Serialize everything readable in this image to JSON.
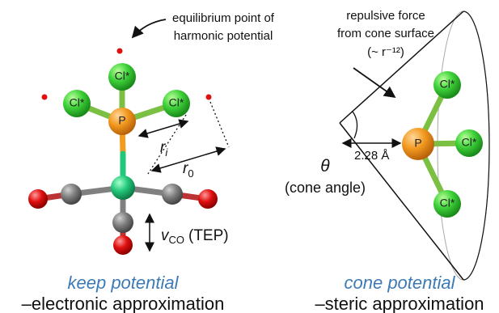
{
  "left_panel": {
    "annotation": [
      "equilibrium point of",
      "harmonic potential"
    ],
    "atoms": {
      "top": "Cl*",
      "left": "Cl*",
      "right": "Cl*",
      "center": "P"
    },
    "r_i": {
      "symbol": "r",
      "subscript": "i"
    },
    "r_0": {
      "symbol": "r",
      "subscript": "0"
    },
    "v_co": {
      "symbol": "v",
      "subscript": "CO",
      "suffix": "(TEP)"
    },
    "caption": "keep potential",
    "subcaption": "–electronic approximation"
  },
  "right_panel": {
    "annotation": [
      "repulsive force",
      "from cone surface",
      "(~ r⁻¹²)"
    ],
    "atoms": {
      "top": "Cl*",
      "right": "Cl*",
      "bottom": "Cl*",
      "center": "P"
    },
    "theta": "θ",
    "theta_label": "(cone angle)",
    "distance": "2.28 Å",
    "caption": "cone potential",
    "subcaption": "–steric approximation"
  }
}
